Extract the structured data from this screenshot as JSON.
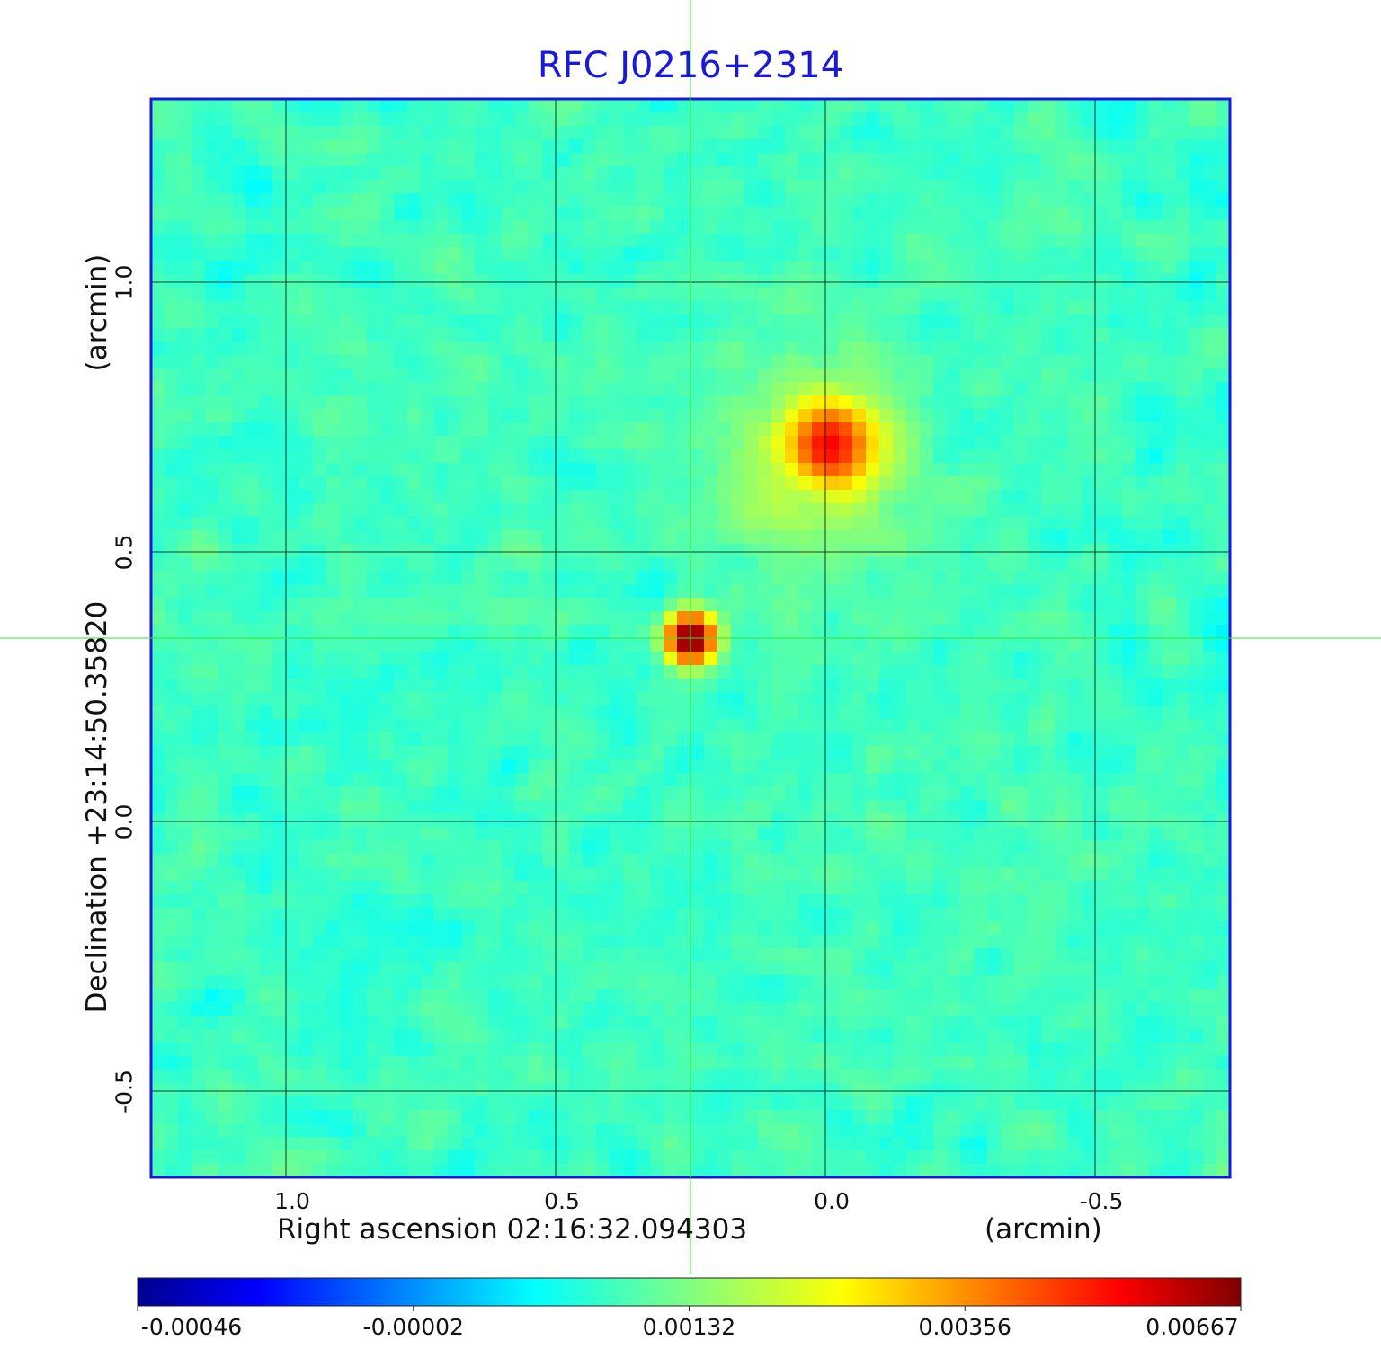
{
  "chart_data": {
    "type": "heatmap",
    "title": "RFC J0216+2314",
    "xlabel": "Right ascension  02:16:32.094303",
    "xunit": "(arcmin)",
    "ylabel": "Declination  +23:14:50.35820",
    "yunit": "(arcmin)",
    "x_range_arcmin": [
      1.25,
      -0.75
    ],
    "y_range_arcmin": [
      -0.66,
      1.34
    ],
    "x_ticks": [
      {
        "value": 1.0,
        "label": "1.0"
      },
      {
        "value": 0.5,
        "label": "0.5"
      },
      {
        "value": 0.0,
        "label": "0.0"
      },
      {
        "value": -0.5,
        "label": "-0.5"
      }
    ],
    "y_ticks": [
      {
        "value": -0.5,
        "label": "-0.5"
      },
      {
        "value": 0.0,
        "label": "0.0"
      },
      {
        "value": 0.5,
        "label": "0.5"
      },
      {
        "value": 1.0,
        "label": "1.0"
      }
    ],
    "grid": true,
    "crosshair_arcmin": {
      "x": 0.25,
      "y": 0.34
    },
    "colormap": "jet",
    "colorbar": {
      "labels": [
        "-0.00046",
        "-0.00002",
        "0.00132",
        "0.00356",
        "0.00667"
      ],
      "range": [
        -0.00046,
        0.00667
      ]
    },
    "sources": [
      {
        "x_arcmin": 0.25,
        "y_arcmin": 0.34,
        "peak": 0.00667,
        "width_arcmin": 0.03
      },
      {
        "x_arcmin": -0.01,
        "y_arcmin": 0.7,
        "peak": 0.0035,
        "width_arcmin": 0.05
      },
      {
        "x_arcmin": 0.0,
        "y_arcmin": 0.68,
        "peak": 0.0009,
        "width_arcmin": 0.13
      }
    ],
    "noise_level": 0.00017
  },
  "colors": {
    "title": "#1a1ad6",
    "frame": "#1a1ad6",
    "grid": "#000000",
    "crosshair": "#32e632"
  }
}
